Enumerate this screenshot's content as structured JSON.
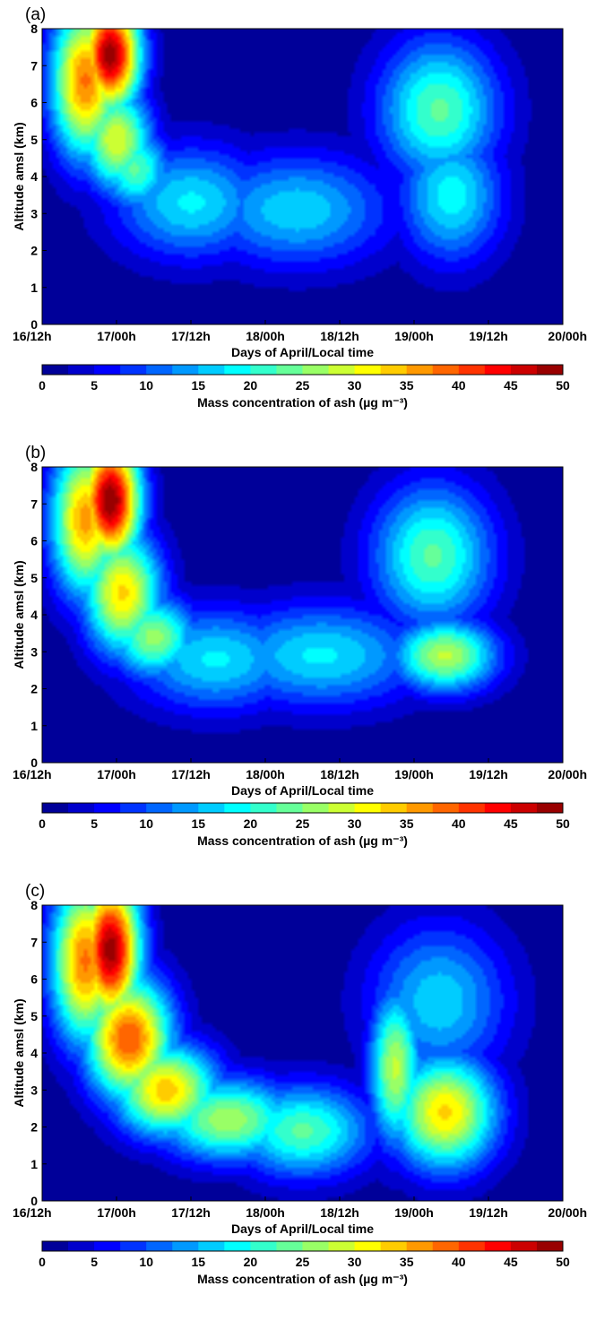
{
  "chart_data": [
    {
      "type": "heatmap",
      "panel_label": "(a)",
      "xlabel": "Days of April/Local time",
      "ylabel": "Altitude amsl (km)",
      "x_tick_labels": [
        "16/12h",
        "17/00h",
        "17/12h",
        "18/00h",
        "18/12h",
        "19/00h",
        "19/12h",
        "20/00h"
      ],
      "y_tick_labels": [
        "0",
        "1",
        "2",
        "3",
        "4",
        "5",
        "6",
        "7",
        "8"
      ],
      "x_range_hours_since_16_12h": [
        0,
        84
      ],
      "ylim": [
        0,
        8
      ],
      "colorbar_label": "Mass concentration of ash (µg m⁻³)",
      "colorbar_ticks": [
        "0",
        "5",
        "10",
        "15",
        "20",
        "25",
        "30",
        "35",
        "40",
        "45",
        "50"
      ],
      "clim": [
        0,
        50
      ],
      "features": [
        {
          "x": 11,
          "y": 7.3,
          "peak": 49,
          "sx": 3.5,
          "sy": 1.1
        },
        {
          "x": 7,
          "y": 6.6,
          "peak": 38,
          "sx": 4,
          "sy": 1.5
        },
        {
          "x": 12,
          "y": 5.0,
          "peak": 30,
          "sx": 4,
          "sy": 1.0
        },
        {
          "x": 15,
          "y": 4.2,
          "peak": 23,
          "sx": 4,
          "sy": 0.8
        },
        {
          "x": 24,
          "y": 3.3,
          "peak": 18,
          "sx": 9,
          "sy": 1.1
        },
        {
          "x": 41,
          "y": 3.1,
          "peak": 17,
          "sx": 11,
          "sy": 1.1
        },
        {
          "x": 64,
          "y": 5.8,
          "peak": 23,
          "sx": 7,
          "sy": 1.4
        },
        {
          "x": 66,
          "y": 3.5,
          "peak": 19,
          "sx": 6,
          "sy": 1.3
        }
      ]
    },
    {
      "type": "heatmap",
      "panel_label": "(b)",
      "xlabel": "Days of April/Local time",
      "ylabel": "Altitude amsl (km)",
      "x_tick_labels": [
        "16/12h",
        "17/00h",
        "17/12h",
        "18/00h",
        "18/12h",
        "19/00h",
        "19/12h",
        "20/00h"
      ],
      "y_tick_labels": [
        "0",
        "1",
        "2",
        "3",
        "4",
        "5",
        "6",
        "7",
        "8"
      ],
      "x_range_hours_since_16_12h": [
        0,
        84
      ],
      "ylim": [
        0,
        8
      ],
      "colorbar_label": "Mass concentration of ash (µg m⁻³)",
      "colorbar_ticks": [
        "0",
        "5",
        "10",
        "15",
        "20",
        "25",
        "30",
        "35",
        "40",
        "45",
        "50"
      ],
      "clim": [
        0,
        50
      ],
      "features": [
        {
          "x": 11,
          "y": 7.1,
          "peak": 50,
          "sx": 3.5,
          "sy": 1.2
        },
        {
          "x": 7,
          "y": 6.6,
          "peak": 36,
          "sx": 4,
          "sy": 1.5
        },
        {
          "x": 13,
          "y": 4.6,
          "peak": 33,
          "sx": 4.5,
          "sy": 1.2
        },
        {
          "x": 18,
          "y": 3.4,
          "peak": 26,
          "sx": 5,
          "sy": 0.8
        },
        {
          "x": 28,
          "y": 2.8,
          "peak": 18,
          "sx": 10,
          "sy": 1.0
        },
        {
          "x": 45,
          "y": 2.9,
          "peak": 18,
          "sx": 12,
          "sy": 1.0
        },
        {
          "x": 63,
          "y": 5.6,
          "peak": 23,
          "sx": 7,
          "sy": 1.4
        },
        {
          "x": 65,
          "y": 2.9,
          "peak": 28,
          "sx": 6,
          "sy": 0.7
        }
      ]
    },
    {
      "type": "heatmap",
      "panel_label": "(c)",
      "xlabel": "Days of April/Local time",
      "ylabel": "Altitude amsl (km)",
      "x_tick_labels": [
        "16/12h",
        "17/00h",
        "17/12h",
        "18/00h",
        "18/12h",
        "19/00h",
        "19/12h",
        "20/00h"
      ],
      "y_tick_labels": [
        "0",
        "1",
        "2",
        "3",
        "4",
        "5",
        "6",
        "7",
        "8"
      ],
      "x_range_hours_since_16_12h": [
        0,
        84
      ],
      "ylim": [
        0,
        8
      ],
      "colorbar_label": "Mass concentration of ash (µg m⁻³)",
      "colorbar_ticks": [
        "0",
        "5",
        "10",
        "15",
        "20",
        "25",
        "30",
        "35",
        "40",
        "45",
        "50"
      ],
      "clim": [
        0,
        50
      ],
      "features": [
        {
          "x": 11,
          "y": 6.8,
          "peak": 49,
          "sx": 3.5,
          "sy": 1.4
        },
        {
          "x": 7,
          "y": 6.5,
          "peak": 38,
          "sx": 4,
          "sy": 1.6
        },
        {
          "x": 14,
          "y": 4.4,
          "peak": 40,
          "sx": 5,
          "sy": 1.2
        },
        {
          "x": 20,
          "y": 3.0,
          "peak": 34,
          "sx": 6,
          "sy": 0.9
        },
        {
          "x": 30,
          "y": 2.2,
          "peak": 27,
          "sx": 8,
          "sy": 0.8
        },
        {
          "x": 42,
          "y": 1.9,
          "peak": 23,
          "sx": 8,
          "sy": 0.9
        },
        {
          "x": 57,
          "y": 3.6,
          "peak": 28,
          "sx": 3,
          "sy": 1.5
        },
        {
          "x": 65,
          "y": 2.4,
          "peak": 33,
          "sx": 6,
          "sy": 1.1
        },
        {
          "x": 64,
          "y": 5.4,
          "peak": 17,
          "sx": 8,
          "sy": 1.5
        }
      ]
    }
  ]
}
